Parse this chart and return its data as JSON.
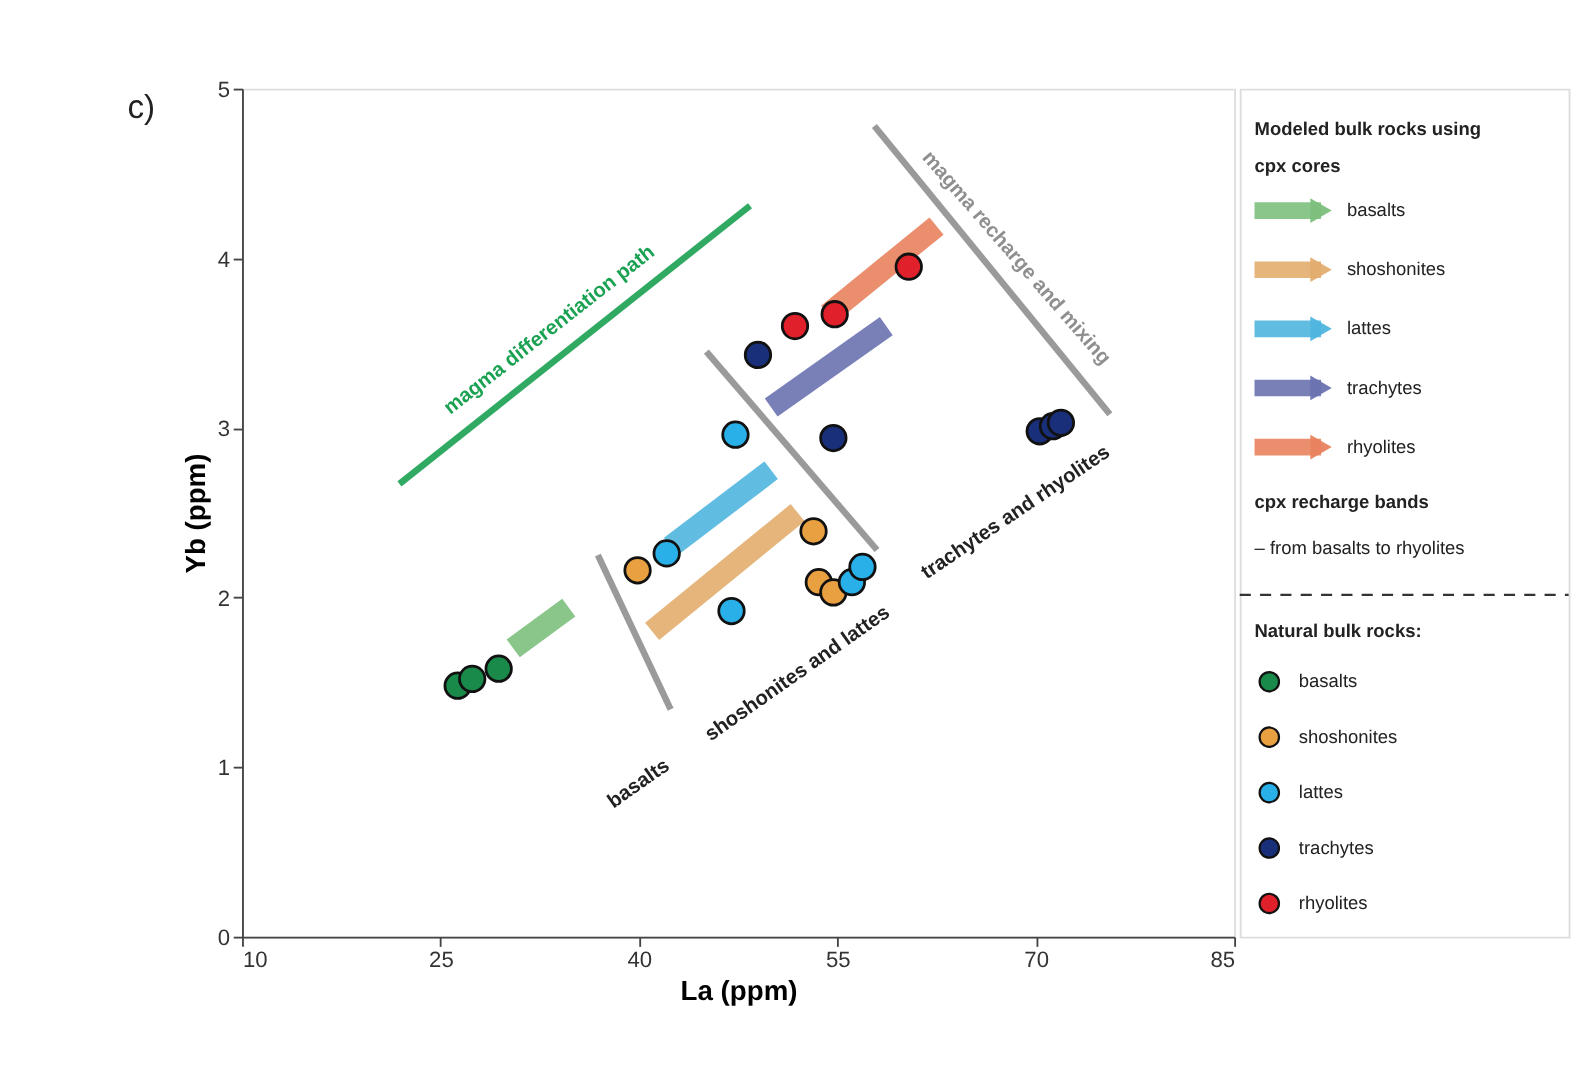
{
  "chart_data": {
    "type": "scatter",
    "title": "c)",
    "xlabel": "La (ppm)",
    "ylabel": "Yb (ppm)",
    "xlim": [
      10,
      85
    ],
    "xticks": [
      10,
      25,
      40,
      55,
      70,
      85
    ],
    "ylim": [
      0,
      5
    ],
    "yticks": [
      0,
      1,
      2,
      3,
      4,
      5
    ],
    "grid": false,
    "legend": "right",
    "legend_title": "Modeled bulk rocks using cpx cores",
    "series": [
      {
        "type": "line",
        "name": "basalts",
        "color": "#7dbf7d",
        "x": [
          30.5,
          34.7
        ],
        "values": [
          1.7,
          1.94
        ]
      },
      {
        "type": "line",
        "name": "shoshonites",
        "color": "#e2ad6e",
        "x": [
          41,
          52
        ],
        "values": [
          1.8,
          2.5
        ]
      },
      {
        "type": "line",
        "name": "lattes",
        "color": "#4fb5de",
        "x": [
          42.4,
          50
        ],
        "values": [
          2.3,
          2.75
        ]
      },
      {
        "type": "line",
        "name": "trachytes",
        "color": "#6a72b0",
        "x": [
          50,
          58.7
        ],
        "values": [
          3.12,
          3.6
        ]
      },
      {
        "type": "line",
        "name": "rhyolites",
        "color": "#e8825e",
        "x": [
          54.3,
          62.5
        ],
        "values": [
          3.67,
          4.19
        ]
      },
      {
        "type": "line",
        "color": "#1aa152",
        "x": [
          21.9,
          48.4
        ],
        "values": [
          2.67,
          4.31
        ]
      },
      {
        "type": "line",
        "color": "#8f8f8f",
        "x": [
          36.9,
          42.4
        ],
        "values": [
          2.25,
          1.34
        ]
      },
      {
        "type": "line",
        "color": "#8f8f8f",
        "x": [
          45.1,
          58.0
        ],
        "values": [
          3.45,
          2.28
        ]
      },
      {
        "type": "line",
        "color": "#8f8f8f",
        "x": [
          57.8,
          75.6
        ],
        "values": [
          4.78,
          3.08
        ]
      },
      {
        "type": "scatter",
        "marker": "circle",
        "name": "basalts",
        "color": "#1a8a4a",
        "x": [
          26.3,
          27.4,
          29.4
        ],
        "values": [
          1.48,
          1.52,
          1.58
        ]
      },
      {
        "type": "scatter",
        "marker": "circle",
        "name": "shoshonites",
        "color": "#e8a040",
        "x": [
          39.9,
          53.2,
          53.6,
          54.7
        ],
        "values": [
          2.16,
          2.39,
          2.09,
          2.03
        ]
      },
      {
        "type": "scatter",
        "marker": "circle",
        "name": "lattes",
        "color": "#2ab0e8",
        "x": [
          42.1,
          47.3,
          47.0,
          56.1,
          56.9
        ],
        "values": [
          2.26,
          2.96,
          1.92,
          2.09,
          2.18
        ]
      },
      {
        "type": "scatter",
        "marker": "circle",
        "name": "trachytes",
        "color": "#1a2f7a",
        "x": [
          49.0,
          54.7,
          70.3,
          71.3,
          71.9
        ],
        "values": [
          3.43,
          2.94,
          2.98,
          3.01,
          3.03
        ]
      },
      {
        "type": "scatter",
        "marker": "circle",
        "name": "rhyolites",
        "color": "#e0202a",
        "x": [
          51.8,
          54.8,
          60.4
        ],
        "values": [
          3.6,
          3.67,
          3.95
        ]
      }
    ],
    "annotations": [
      "magma differentiation path",
      "magma recharge and mixing",
      "basalts",
      "shoshonites and lattes",
      "trachytes and rhyolites",
      "cpx recharge bands",
      "– from basalts to rhyolites",
      "Natural bulk rocks:"
    ]
  }
}
